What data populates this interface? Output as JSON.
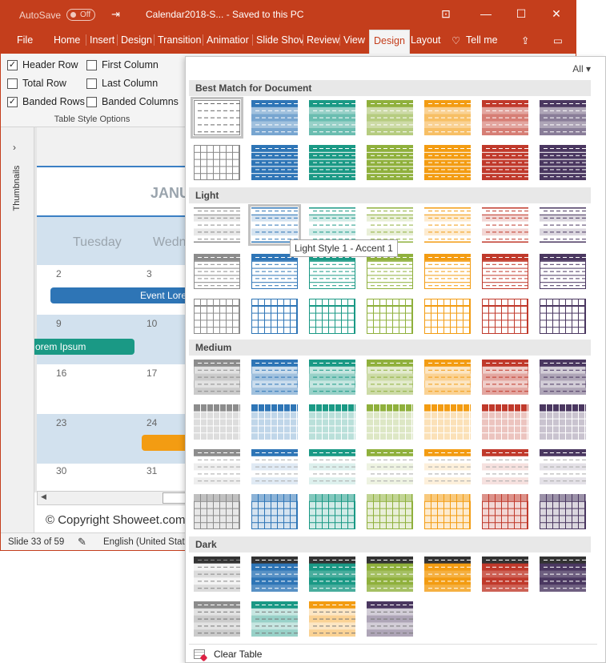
{
  "titlebar": {
    "autosave": "AutoSave",
    "toggle": "Off",
    "doc_title": "Calendar2018-S...  -  Saved to this PC"
  },
  "tabs": [
    {
      "label": "File"
    },
    {
      "label": "Home"
    },
    {
      "label": "Insert"
    },
    {
      "label": "Design"
    },
    {
      "label": "Transition"
    },
    {
      "label": "Animatior"
    },
    {
      "label": "Slide Shov"
    },
    {
      "label": "Review"
    },
    {
      "label": "View"
    },
    {
      "label": "Design"
    },
    {
      "label": "Layout"
    },
    {
      "label": "Tell me"
    }
  ],
  "options": [
    {
      "label": "Header Row",
      "checked": true
    },
    {
      "label": "Total Row",
      "checked": false
    },
    {
      "label": "Banded Rows",
      "checked": true
    },
    {
      "label": "First Column",
      "checked": false
    },
    {
      "label": "Last Column",
      "checked": false
    },
    {
      "label": "Banded Columns",
      "checked": false
    }
  ],
  "options_group_label": "Table Style Options",
  "thumbnails_label": "Thumbnails",
  "slide": {
    "month": "JANU",
    "days": [
      "Tuesday",
      "Wedn"
    ],
    "rows": [
      [
        "2",
        "3"
      ],
      [
        "9",
        "10"
      ],
      [
        "16",
        "17"
      ],
      [
        "23",
        "24"
      ],
      [
        "30",
        "31"
      ]
    ],
    "events": [
      "Event Lore",
      "orem Ipsum"
    ]
  },
  "copyright": "© Copyright Showeet.com",
  "status": {
    "slide": "Slide 33 of 59",
    "language": "English (United States)"
  },
  "gallery": {
    "filter": "All",
    "sections": [
      {
        "label": "Best Match for Document"
      },
      {
        "label": "Light"
      },
      {
        "label": "Medium"
      },
      {
        "label": "Dark"
      }
    ],
    "tooltip": "Light Style 1 - Accent 1",
    "clear": "Clear Table"
  },
  "colors": {
    "titlebar": "#c43e1c",
    "accents": [
      "#8c8c8c",
      "#2e75b6",
      "#1a9985",
      "#8fb03c",
      "#f39c12",
      "#c0392b",
      "#4a3760"
    ]
  }
}
